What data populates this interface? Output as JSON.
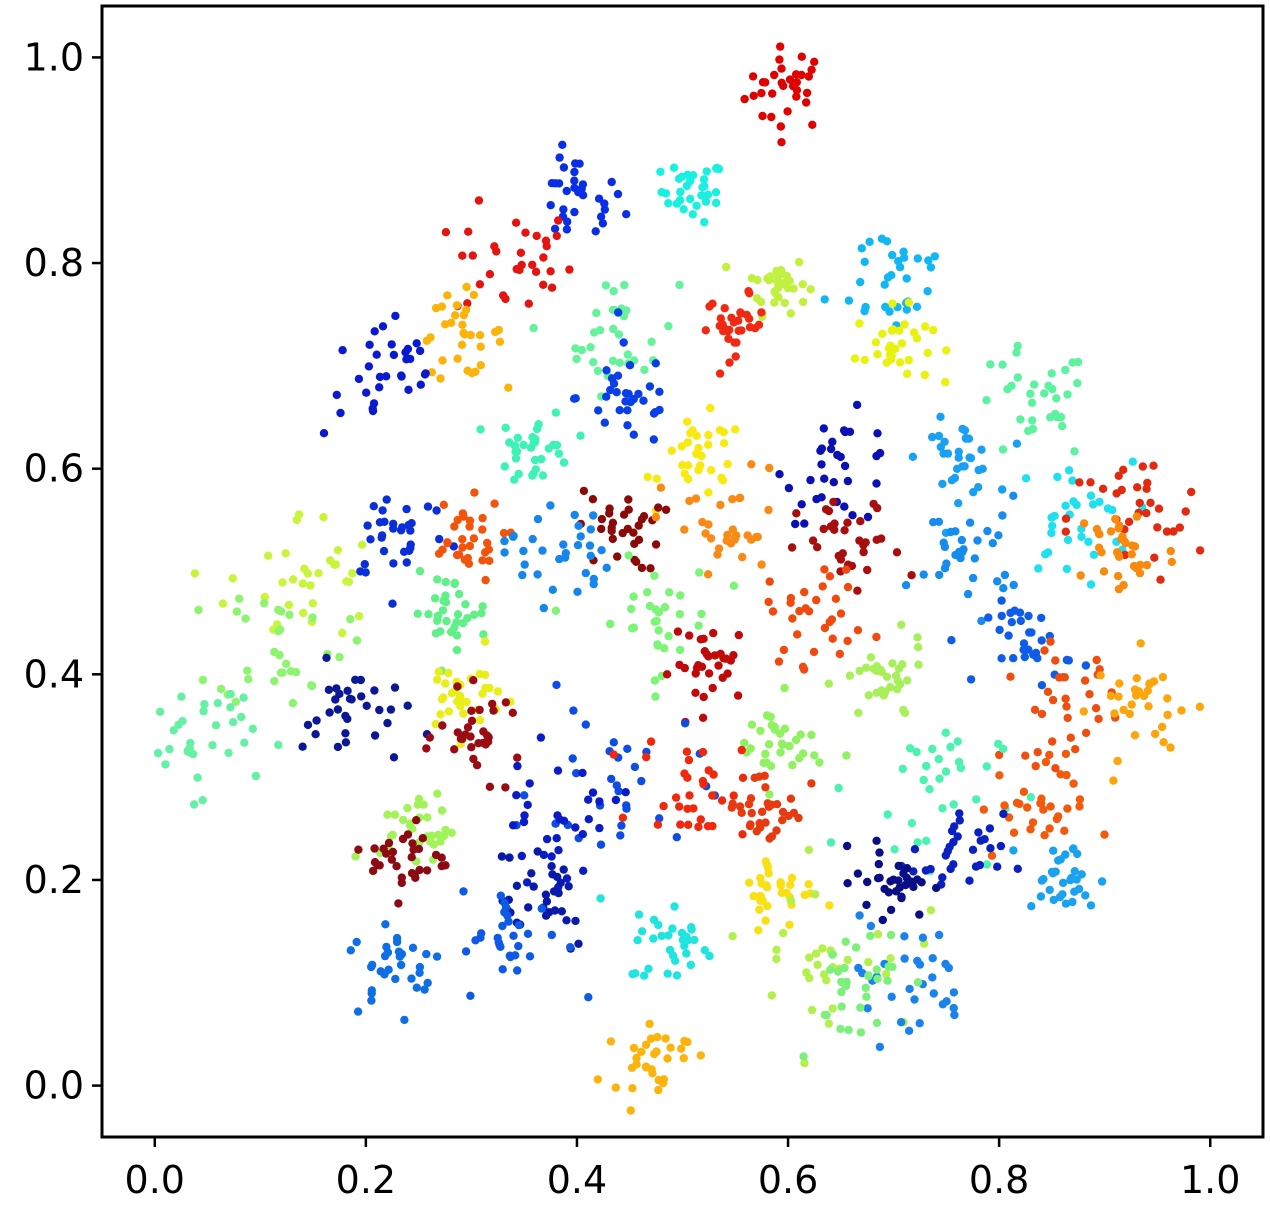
{
  "chart_data": {
    "type": "scatter",
    "title": "",
    "xlabel": "",
    "ylabel": "",
    "xlim": [
      -0.05,
      1.05
    ],
    "ylim": [
      -0.05,
      1.05
    ],
    "grid": false,
    "legend": "none",
    "x_ticks": [
      {
        "value": 0.0,
        "label": "0.0"
      },
      {
        "value": 0.2,
        "label": "0.2"
      },
      {
        "value": 0.4,
        "label": "0.4"
      },
      {
        "value": 0.6,
        "label": "0.6"
      },
      {
        "value": 0.8,
        "label": "0.8"
      },
      {
        "value": 1.0,
        "label": "1.0"
      }
    ],
    "y_ticks": [
      {
        "value": 0.0,
        "label": "0.0"
      },
      {
        "value": 0.2,
        "label": "0.2"
      },
      {
        "value": 0.4,
        "label": "0.4"
      },
      {
        "value": 0.6,
        "label": "0.6"
      },
      {
        "value": 0.8,
        "label": "0.8"
      },
      {
        "value": 1.0,
        "label": "1.0"
      }
    ],
    "colormap": "jet",
    "points_per_cluster": 32,
    "clusters": [
      {
        "x": 0.6,
        "y": 0.97,
        "spread": 0.02,
        "color": "#e00000"
      },
      {
        "x": 0.51,
        "y": 0.87,
        "spread": 0.015,
        "color": "#18f0e0"
      },
      {
        "x": 0.4,
        "y": 0.86,
        "spread": 0.022,
        "color": "#0a2ee6"
      },
      {
        "x": 0.34,
        "y": 0.8,
        "spread": 0.028,
        "color": "#e41410"
      },
      {
        "x": 0.7,
        "y": 0.79,
        "spread": 0.03,
        "color": "#12b6f4"
      },
      {
        "x": 0.59,
        "y": 0.78,
        "spread": 0.014,
        "color": "#c2f040"
      },
      {
        "x": 0.7,
        "y": 0.72,
        "spread": 0.018,
        "color": "#e8f20c"
      },
      {
        "x": 0.44,
        "y": 0.73,
        "spread": 0.028,
        "color": "#66f29a"
      },
      {
        "x": 0.55,
        "y": 0.74,
        "spread": 0.014,
        "color": "#f02a12"
      },
      {
        "x": 0.29,
        "y": 0.73,
        "spread": 0.02,
        "color": "#fcb40a"
      },
      {
        "x": 0.22,
        "y": 0.69,
        "spread": 0.03,
        "color": "#0a1ad0"
      },
      {
        "x": 0.45,
        "y": 0.67,
        "spread": 0.025,
        "color": "#0a3ee8"
      },
      {
        "x": 0.83,
        "y": 0.66,
        "spread": 0.028,
        "color": "#5cf2a0"
      },
      {
        "x": 0.52,
        "y": 0.61,
        "spread": 0.02,
        "color": "#f8ea10"
      },
      {
        "x": 0.36,
        "y": 0.62,
        "spread": 0.018,
        "color": "#3cf2b4"
      },
      {
        "x": 0.65,
        "y": 0.6,
        "spread": 0.026,
        "color": "#0a10b4"
      },
      {
        "x": 0.76,
        "y": 0.61,
        "spread": 0.018,
        "color": "#1aa0f2"
      },
      {
        "x": 0.87,
        "y": 0.55,
        "spread": 0.028,
        "color": "#20e0f0"
      },
      {
        "x": 0.93,
        "y": 0.55,
        "spread": 0.032,
        "color": "#e22a10"
      },
      {
        "x": 0.92,
        "y": 0.52,
        "spread": 0.025,
        "color": "#fa8a0e"
      },
      {
        "x": 0.23,
        "y": 0.54,
        "spread": 0.025,
        "color": "#0a2ed8"
      },
      {
        "x": 0.14,
        "y": 0.49,
        "spread": 0.035,
        "color": "#c8f43a"
      },
      {
        "x": 0.12,
        "y": 0.43,
        "spread": 0.03,
        "color": "#8cf46e"
      },
      {
        "x": 0.29,
        "y": 0.53,
        "spread": 0.02,
        "color": "#f2540c"
      },
      {
        "x": 0.44,
        "y": 0.54,
        "spread": 0.02,
        "color": "#8a0a0a"
      },
      {
        "x": 0.38,
        "y": 0.52,
        "spread": 0.025,
        "color": "#1686ec"
      },
      {
        "x": 0.54,
        "y": 0.54,
        "spread": 0.03,
        "color": "#fa8a16"
      },
      {
        "x": 0.66,
        "y": 0.52,
        "spread": 0.025,
        "color": "#a80e0e"
      },
      {
        "x": 0.77,
        "y": 0.52,
        "spread": 0.026,
        "color": "#168cf0"
      },
      {
        "x": 0.63,
        "y": 0.46,
        "spread": 0.025,
        "color": "#f24a0e"
      },
      {
        "x": 0.47,
        "y": 0.45,
        "spread": 0.03,
        "color": "#7cf476"
      },
      {
        "x": 0.28,
        "y": 0.46,
        "spread": 0.018,
        "color": "#60f088"
      },
      {
        "x": 0.53,
        "y": 0.41,
        "spread": 0.02,
        "color": "#c00a0a"
      },
      {
        "x": 0.83,
        "y": 0.43,
        "spread": 0.02,
        "color": "#0e5ce8"
      },
      {
        "x": 0.86,
        "y": 0.37,
        "spread": 0.028,
        "color": "#ee4e10"
      },
      {
        "x": 0.94,
        "y": 0.37,
        "spread": 0.025,
        "color": "#fca60c"
      },
      {
        "x": 0.04,
        "y": 0.34,
        "spread": 0.028,
        "color": "#66f0a6"
      },
      {
        "x": 0.19,
        "y": 0.36,
        "spread": 0.025,
        "color": "#0a1896"
      },
      {
        "x": 0.29,
        "y": 0.38,
        "spread": 0.02,
        "color": "#e8ee18"
      },
      {
        "x": 0.31,
        "y": 0.34,
        "spread": 0.02,
        "color": "#9a0c14"
      },
      {
        "x": 0.69,
        "y": 0.39,
        "spread": 0.02,
        "color": "#a8f05a"
      },
      {
        "x": 0.59,
        "y": 0.33,
        "spread": 0.022,
        "color": "#90f260"
      },
      {
        "x": 0.44,
        "y": 0.29,
        "spread": 0.04,
        "color": "#0e4ce6"
      },
      {
        "x": 0.38,
        "y": 0.26,
        "spread": 0.03,
        "color": "#0a1cc8"
      },
      {
        "x": 0.51,
        "y": 0.29,
        "spread": 0.025,
        "color": "#f0280c"
      },
      {
        "x": 0.58,
        "y": 0.27,
        "spread": 0.02,
        "color": "#e83a10"
      },
      {
        "x": 0.73,
        "y": 0.29,
        "spread": 0.035,
        "color": "#4cf2b0"
      },
      {
        "x": 0.83,
        "y": 0.27,
        "spread": 0.025,
        "color": "#f45a0c"
      },
      {
        "x": 0.76,
        "y": 0.22,
        "spread": 0.022,
        "color": "#0a20c0"
      },
      {
        "x": 0.86,
        "y": 0.2,
        "spread": 0.018,
        "color": "#1aa2f0"
      },
      {
        "x": 0.7,
        "y": 0.2,
        "spread": 0.018,
        "color": "#0a0e84"
      },
      {
        "x": 0.25,
        "y": 0.25,
        "spread": 0.018,
        "color": "#a2f25a"
      },
      {
        "x": 0.24,
        "y": 0.22,
        "spread": 0.018,
        "color": "#8c0a12"
      },
      {
        "x": 0.36,
        "y": 0.19,
        "spread": 0.03,
        "color": "#0a1aa8"
      },
      {
        "x": 0.23,
        "y": 0.12,
        "spread": 0.022,
        "color": "#0e6ee6"
      },
      {
        "x": 0.34,
        "y": 0.14,
        "spread": 0.025,
        "color": "#0e5ae6"
      },
      {
        "x": 0.49,
        "y": 0.14,
        "spread": 0.02,
        "color": "#20e4e0"
      },
      {
        "x": 0.59,
        "y": 0.19,
        "spread": 0.018,
        "color": "#f8e014"
      },
      {
        "x": 0.64,
        "y": 0.13,
        "spread": 0.04,
        "color": "#b4f04c"
      },
      {
        "x": 0.71,
        "y": 0.1,
        "spread": 0.03,
        "color": "#1a82ec"
      },
      {
        "x": 0.66,
        "y": 0.1,
        "spread": 0.03,
        "color": "#7cf07a"
      },
      {
        "x": 0.47,
        "y": 0.03,
        "spread": 0.018,
        "color": "#fcb40c"
      }
    ]
  }
}
